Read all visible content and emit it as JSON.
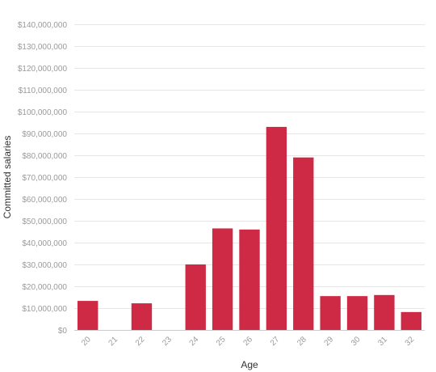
{
  "chart_data": {
    "type": "bar",
    "title": "",
    "xlabel": "Age",
    "ylabel": "Committed salaries",
    "categories": [
      "20",
      "21",
      "22",
      "23",
      "24",
      "25",
      "26",
      "27",
      "28",
      "29",
      "30",
      "31",
      "32"
    ],
    "values": [
      13300000,
      0,
      12200000,
      0,
      30000000,
      46500000,
      46000000,
      93000000,
      79000000,
      15500000,
      15500000,
      16000000,
      8200000
    ],
    "ylim": [
      0,
      140000000
    ],
    "y_ticks": [
      0,
      10000000,
      20000000,
      30000000,
      40000000,
      50000000,
      60000000,
      70000000,
      80000000,
      90000000,
      100000000,
      110000000,
      120000000,
      130000000,
      140000000
    ],
    "y_tick_labels": [
      "$0",
      "$10,000,000",
      "$20,000,000",
      "$30,000,000",
      "$40,000,000",
      "$50,000,000",
      "$60,000,000",
      "$70,000,000",
      "$80,000,000",
      "$90,000,000",
      "$100,000,000",
      "$110,000,000",
      "$120,000,000",
      "$130,000,000",
      "$140,000,000"
    ],
    "grid": true,
    "legend": "none",
    "bar_color": "#cf2a45"
  }
}
